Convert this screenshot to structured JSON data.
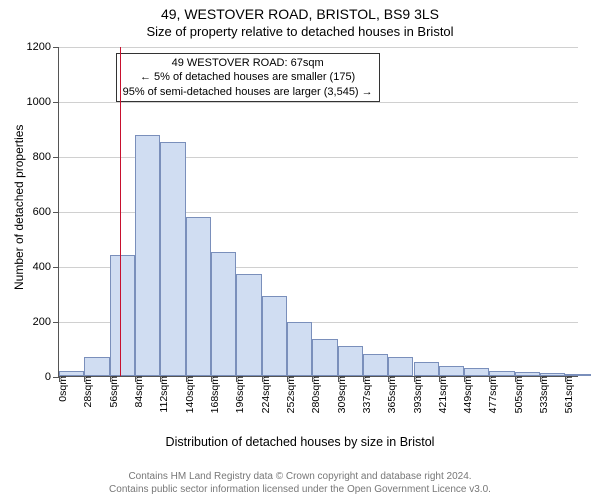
{
  "title": "49, WESTOVER ROAD, BRISTOL, BS9 3LS",
  "subtitle": "Size of property relative to detached houses in Bristol",
  "y_axis": {
    "title": "Number of detached properties",
    "min": 0,
    "max": 1200,
    "step": 200,
    "ticks": [
      0,
      200,
      400,
      600,
      800,
      1000,
      1200
    ]
  },
  "x_axis": {
    "title": "Distribution of detached houses by size in Bristol",
    "labels": [
      "0sqm",
      "28sqm",
      "56sqm",
      "84sqm",
      "112sqm",
      "140sqm",
      "168sqm",
      "196sqm",
      "224sqm",
      "252sqm",
      "280sqm",
      "309sqm",
      "337sqm",
      "365sqm",
      "393sqm",
      "421sqm",
      "449sqm",
      "477sqm",
      "505sqm",
      "533sqm",
      "561sqm"
    ],
    "xmax_sqm": 575
  },
  "histogram": {
    "bin_width_sqm": 28,
    "values": [
      20,
      70,
      440,
      875,
      850,
      580,
      450,
      370,
      290,
      195,
      135,
      110,
      80,
      70,
      50,
      35,
      30,
      20,
      15,
      12,
      8
    ],
    "bar_fill": "#d0ddf2",
    "bar_border": "#7a8fbb"
  },
  "marker": {
    "sqm": 67,
    "color": "#c8102e"
  },
  "info_box": {
    "line1": "49 WESTOVER ROAD: 67sqm",
    "line2": "← 5% of detached houses are smaller (175)",
    "line3": "95% of semi-detached houses are larger (3,545) →"
  },
  "chart_style": {
    "grid_color": "#d0d0d0",
    "axis_color": "#555555",
    "background": "#ffffff",
    "font_family": "Arial",
    "title_fontsize": 14,
    "subtitle_fontsize": 13,
    "axis_label_fontsize": 11,
    "tick_fontsize": 10.5
  },
  "credits": {
    "line1": "Contains HM Land Registry data © Crown copyright and database right 2024.",
    "line2": "Contains public sector information licensed under the Open Government Licence v3.0."
  }
}
